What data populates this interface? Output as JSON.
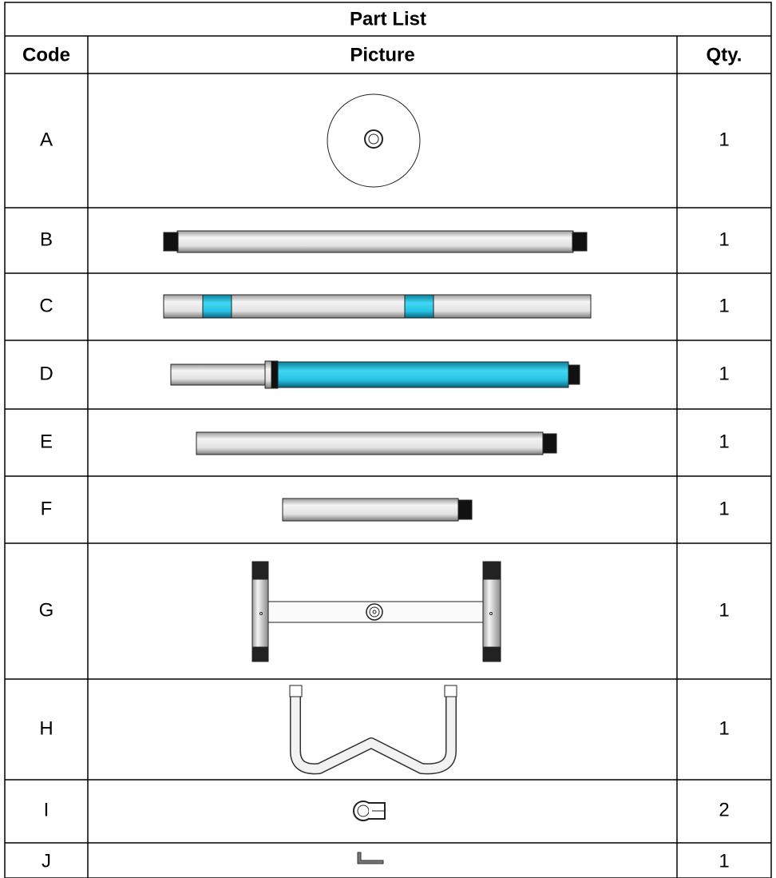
{
  "table": {
    "title": "Part List",
    "headers": [
      "Code",
      "Picture",
      "Qty."
    ],
    "rows": [
      {
        "code": "A",
        "qty": 1
      },
      {
        "code": "B",
        "qty": 1
      },
      {
        "code": "C",
        "qty": 1
      },
      {
        "code": "D",
        "qty": 1
      },
      {
        "code": "E",
        "qty": 1
      },
      {
        "code": "F",
        "qty": 1
      },
      {
        "code": "G",
        "qty": 1
      },
      {
        "code": "H",
        "qty": 1
      },
      {
        "code": "I",
        "qty": 2
      },
      {
        "code": "J",
        "qty": 1
      }
    ]
  }
}
